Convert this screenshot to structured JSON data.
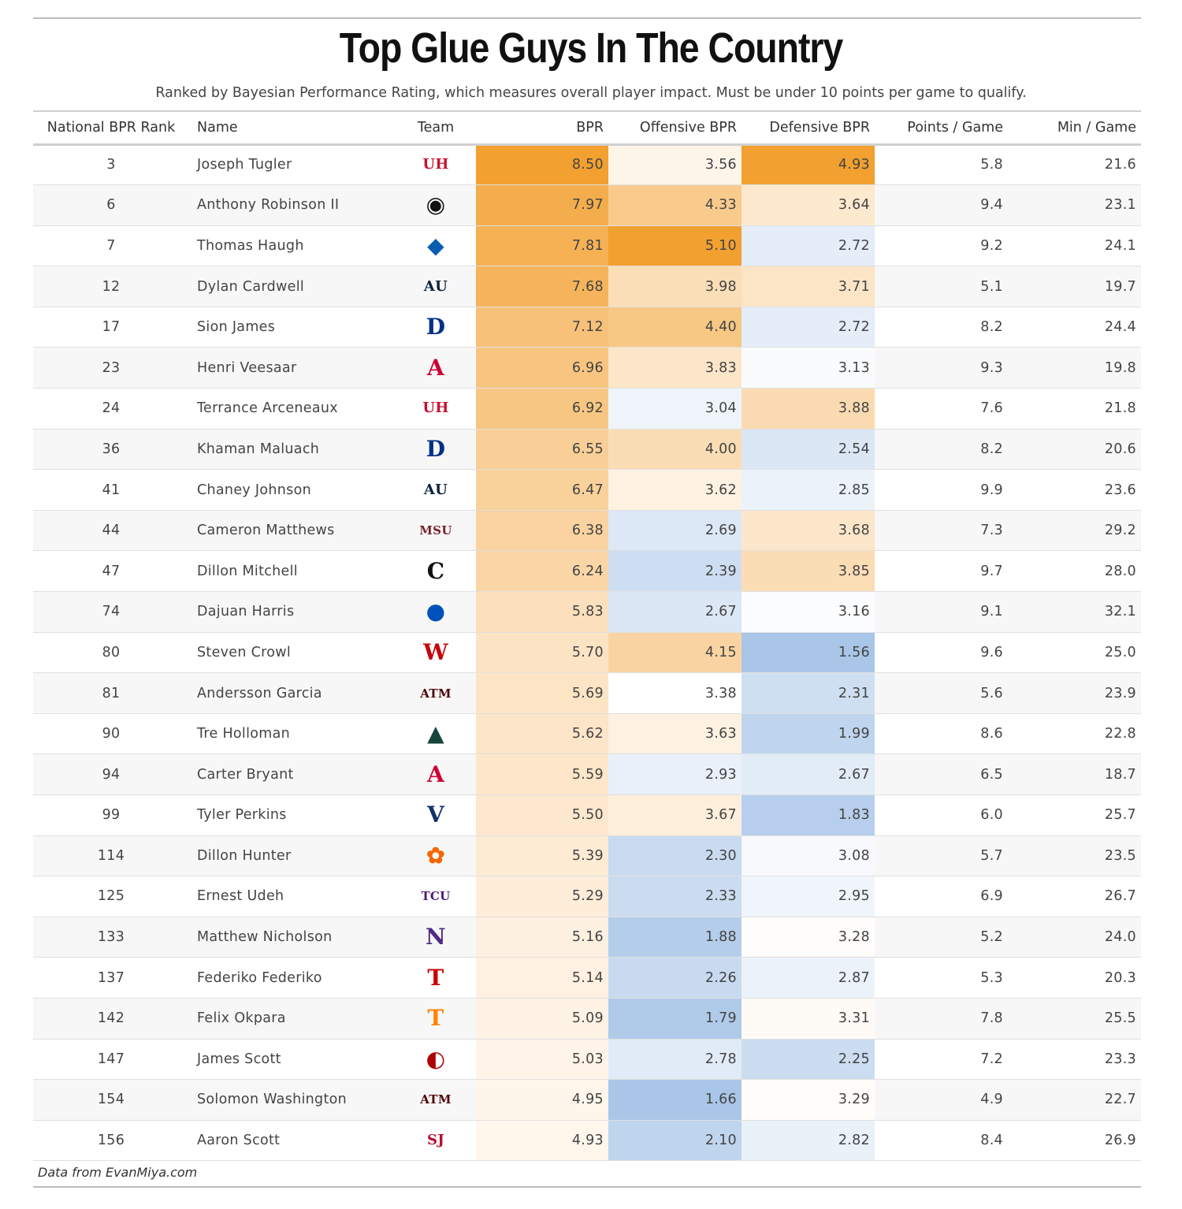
{
  "chart_data": {
    "type": "table",
    "title": "Top Glue Guys In The Country",
    "subtitle": "Ranked by Bayesian Performance Rating, which measures overall player impact. Must be under 10 points per game to qualify.",
    "columns": [
      "National BPR Rank",
      "Name",
      "Team",
      "BPR",
      "Offensive BPR",
      "Defensive BPR",
      "Points / Game",
      "Min / Game"
    ],
    "rows": [
      {
        "rank": "3",
        "name": "Joseph Tugler",
        "team_logo": "houston-logo",
        "bpr": "8.50",
        "obpr": "3.56",
        "dbpr": "4.93",
        "ppg": "5.8",
        "mpg": "21.6"
      },
      {
        "rank": "6",
        "name": "Anthony Robinson II",
        "team_logo": "missouri-logo",
        "bpr": "7.97",
        "obpr": "4.33",
        "dbpr": "3.64",
        "ppg": "9.4",
        "mpg": "23.1"
      },
      {
        "rank": "7",
        "name": "Thomas Haugh",
        "team_logo": "florida-logo",
        "bpr": "7.81",
        "obpr": "5.10",
        "dbpr": "2.72",
        "ppg": "9.2",
        "mpg": "24.1"
      },
      {
        "rank": "12",
        "name": "Dylan Cardwell",
        "team_logo": "auburn-logo",
        "bpr": "7.68",
        "obpr": "3.98",
        "dbpr": "3.71",
        "ppg": "5.1",
        "mpg": "19.7"
      },
      {
        "rank": "17",
        "name": "Sion James",
        "team_logo": "duke-logo",
        "bpr": "7.12",
        "obpr": "4.40",
        "dbpr": "2.72",
        "ppg": "8.2",
        "mpg": "24.4"
      },
      {
        "rank": "23",
        "name": "Henri Veesaar",
        "team_logo": "arizona-logo",
        "bpr": "6.96",
        "obpr": "3.83",
        "dbpr": "3.13",
        "ppg": "9.3",
        "mpg": "19.8"
      },
      {
        "rank": "24",
        "name": "Terrance Arceneaux",
        "team_logo": "houston-logo",
        "bpr": "6.92",
        "obpr": "3.04",
        "dbpr": "3.88",
        "ppg": "7.6",
        "mpg": "21.8"
      },
      {
        "rank": "36",
        "name": "Khaman Maluach",
        "team_logo": "duke-logo",
        "bpr": "6.55",
        "obpr": "4.00",
        "dbpr": "2.54",
        "ppg": "8.2",
        "mpg": "20.6"
      },
      {
        "rank": "41",
        "name": "Chaney Johnson",
        "team_logo": "auburn-logo",
        "bpr": "6.47",
        "obpr": "3.62",
        "dbpr": "2.85",
        "ppg": "9.9",
        "mpg": "23.6"
      },
      {
        "rank": "44",
        "name": "Cameron Matthews",
        "team_logo": "mississippi-state-logo",
        "bpr": "6.38",
        "obpr": "2.69",
        "dbpr": "3.68",
        "ppg": "7.3",
        "mpg": "29.2"
      },
      {
        "rank": "47",
        "name": "Dillon Mitchell",
        "team_logo": "cincinnati-logo",
        "bpr": "6.24",
        "obpr": "2.39",
        "dbpr": "3.85",
        "ppg": "9.7",
        "mpg": "28.0"
      },
      {
        "rank": "74",
        "name": "Dajuan Harris",
        "team_logo": "kansas-logo",
        "bpr": "5.83",
        "obpr": "2.67",
        "dbpr": "3.16",
        "ppg": "9.1",
        "mpg": "32.1"
      },
      {
        "rank": "80",
        "name": "Steven Crowl",
        "team_logo": "wisconsin-logo",
        "bpr": "5.70",
        "obpr": "4.15",
        "dbpr": "1.56",
        "ppg": "9.6",
        "mpg": "25.0"
      },
      {
        "rank": "81",
        "name": "Andersson Garcia",
        "team_logo": "texas-am-logo",
        "bpr": "5.69",
        "obpr": "3.38",
        "dbpr": "2.31",
        "ppg": "5.6",
        "mpg": "23.9"
      },
      {
        "rank": "90",
        "name": "Tre Holloman",
        "team_logo": "michigan-state-logo",
        "bpr": "5.62",
        "obpr": "3.63",
        "dbpr": "1.99",
        "ppg": "8.6",
        "mpg": "22.8"
      },
      {
        "rank": "94",
        "name": "Carter Bryant",
        "team_logo": "arizona-logo",
        "bpr": "5.59",
        "obpr": "2.93",
        "dbpr": "2.67",
        "ppg": "6.5",
        "mpg": "18.7"
      },
      {
        "rank": "99",
        "name": "Tyler Perkins",
        "team_logo": "villanova-logo",
        "bpr": "5.50",
        "obpr": "3.67",
        "dbpr": "1.83",
        "ppg": "6.0",
        "mpg": "25.7"
      },
      {
        "rank": "114",
        "name": "Dillon Hunter",
        "team_logo": "clemson-logo",
        "bpr": "5.39",
        "obpr": "2.30",
        "dbpr": "3.08",
        "ppg": "5.7",
        "mpg": "23.5"
      },
      {
        "rank": "125",
        "name": "Ernest Udeh",
        "team_logo": "tcu-logo",
        "bpr": "5.29",
        "obpr": "2.33",
        "dbpr": "2.95",
        "ppg": "6.9",
        "mpg": "26.7"
      },
      {
        "rank": "133",
        "name": "Matthew Nicholson",
        "team_logo": "northwestern-logo",
        "bpr": "5.16",
        "obpr": "1.88",
        "dbpr": "3.28",
        "ppg": "5.2",
        "mpg": "24.0"
      },
      {
        "rank": "137",
        "name": "Federiko Federiko",
        "team_logo": "texas-tech-logo",
        "bpr": "5.14",
        "obpr": "2.26",
        "dbpr": "2.87",
        "ppg": "5.3",
        "mpg": "20.3"
      },
      {
        "rank": "142",
        "name": "Felix Okpara",
        "team_logo": "tennessee-logo",
        "bpr": "5.09",
        "obpr": "1.79",
        "dbpr": "3.31",
        "ppg": "7.8",
        "mpg": "25.5"
      },
      {
        "rank": "147",
        "name": "James Scott",
        "team_logo": "louisville-logo",
        "bpr": "5.03",
        "obpr": "2.78",
        "dbpr": "2.25",
        "ppg": "7.2",
        "mpg": "23.3"
      },
      {
        "rank": "154",
        "name": "Solomon Washington",
        "team_logo": "texas-am-logo",
        "bpr": "4.95",
        "obpr": "1.66",
        "dbpr": "3.29",
        "ppg": "4.9",
        "mpg": "22.7"
      },
      {
        "rank": "156",
        "name": "Aaron Scott",
        "team_logo": "st-johns-logo",
        "bpr": "4.93",
        "obpr": "2.10",
        "dbpr": "2.82",
        "ppg": "8.4",
        "mpg": "26.9"
      }
    ],
    "footnote": "Data from EvanMiya.com"
  },
  "logos": {
    "houston-logo": {
      "glyph": "UH",
      "color": "#c8102e",
      "size": "small"
    },
    "missouri-logo": {
      "glyph": "◉",
      "color": "#111111",
      "size": "normal"
    },
    "florida-logo": {
      "glyph": "◆",
      "color": "#0b5cad",
      "size": "normal"
    },
    "auburn-logo": {
      "glyph": "AU",
      "color": "#0c2340",
      "size": "small"
    },
    "duke-logo": {
      "glyph": "D",
      "color": "#003087",
      "size": "normal"
    },
    "arizona-logo": {
      "glyph": "A",
      "color": "#cc0033",
      "size": "normal"
    },
    "mississippi-state-logo": {
      "glyph": "MSU",
      "color": "#7a1f2b",
      "size": "tiny"
    },
    "cincinnati-logo": {
      "glyph": "C",
      "color": "#111111",
      "size": "normal"
    },
    "kansas-logo": {
      "glyph": "●",
      "color": "#0051ba",
      "size": "normal"
    },
    "wisconsin-logo": {
      "glyph": "W",
      "color": "#c5050c",
      "size": "normal"
    },
    "texas-am-logo": {
      "glyph": "ATM",
      "color": "#500000",
      "size": "tiny"
    },
    "michigan-state-logo": {
      "glyph": "▲",
      "color": "#18453b",
      "size": "normal"
    },
    "villanova-logo": {
      "glyph": "V",
      "color": "#13326b",
      "size": "normal"
    },
    "clemson-logo": {
      "glyph": "✿",
      "color": "#f56600",
      "size": "normal"
    },
    "tcu-logo": {
      "glyph": "TCU",
      "color": "#4d1979",
      "size": "tiny"
    },
    "northwestern-logo": {
      "glyph": "N",
      "color": "#4e2a84",
      "size": "normal"
    },
    "texas-tech-logo": {
      "glyph": "T",
      "color": "#cc0000",
      "size": "normal"
    },
    "tennessee-logo": {
      "glyph": "T",
      "color": "#ff8200",
      "size": "normal"
    },
    "louisville-logo": {
      "glyph": "◐",
      "color": "#ad0000",
      "size": "normal"
    },
    "st-johns-logo": {
      "glyph": "SJ",
      "color": "#ba0c2f",
      "size": "small"
    }
  },
  "colors": {
    "high": "#f2a030",
    "mid": "#ffffff",
    "low": "#a9c6e8",
    "text": "#444444"
  }
}
